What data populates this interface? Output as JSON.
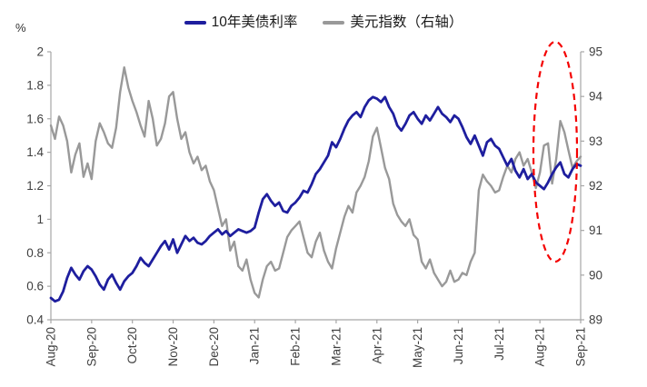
{
  "colors": {
    "treasury_line": "#1e1e9e",
    "dollar_line": "#999999",
    "annotation_red": "#f40000",
    "axis": "#a6a6a6",
    "tick_text": "#3f3f3f"
  },
  "legend": {
    "items": [
      {
        "label": "10年美债利率",
        "color": "#1e1e9e"
      },
      {
        "label": "美元指数（右轴）",
        "color": "#999999"
      }
    ]
  },
  "chart_data": {
    "type": "line",
    "title": "",
    "grid": false,
    "legend_position": "top-center",
    "x_categories": [
      "Aug-20",
      "Sep-20",
      "Oct-20",
      "Nov-20",
      "Dec-20",
      "Jan-21",
      "Feb-21",
      "Mar-21",
      "Apr-21",
      "May-21",
      "Jun-21",
      "Jul-21",
      "Aug-21",
      "Sep-21"
    ],
    "left_axis": {
      "unit": "%",
      "min": 0.4,
      "max": 2.0,
      "ticks": [
        "2",
        "1.8",
        "1.6",
        "1.4",
        "1.2",
        "1",
        "0.8",
        "0.6",
        "0.4"
      ]
    },
    "right_axis": {
      "min": 89,
      "max": 95,
      "ticks": [
        "95",
        "94",
        "93",
        "92",
        "91",
        "90",
        "89"
      ]
    },
    "series": [
      {
        "name": "10年美债利率",
        "axis": "left",
        "color": "#1e1e9e",
        "values": [
          0.53,
          0.51,
          0.52,
          0.57,
          0.65,
          0.71,
          0.67,
          0.64,
          0.69,
          0.72,
          0.7,
          0.66,
          0.61,
          0.58,
          0.64,
          0.67,
          0.62,
          0.58,
          0.63,
          0.66,
          0.68,
          0.72,
          0.77,
          0.74,
          0.72,
          0.76,
          0.8,
          0.84,
          0.87,
          0.82,
          0.88,
          0.8,
          0.85,
          0.9,
          0.87,
          0.89,
          0.86,
          0.85,
          0.87,
          0.9,
          0.92,
          0.94,
          0.91,
          0.93,
          0.9,
          0.92,
          0.94,
          0.93,
          0.92,
          0.93,
          0.95,
          1.04,
          1.12,
          1.15,
          1.11,
          1.08,
          1.1,
          1.05,
          1.04,
          1.08,
          1.1,
          1.13,
          1.17,
          1.16,
          1.21,
          1.27,
          1.3,
          1.34,
          1.38,
          1.46,
          1.43,
          1.48,
          1.54,
          1.59,
          1.62,
          1.64,
          1.61,
          1.67,
          1.71,
          1.73,
          1.72,
          1.7,
          1.73,
          1.67,
          1.63,
          1.56,
          1.53,
          1.57,
          1.62,
          1.64,
          1.6,
          1.57,
          1.62,
          1.59,
          1.63,
          1.67,
          1.63,
          1.61,
          1.58,
          1.62,
          1.6,
          1.55,
          1.49,
          1.45,
          1.5,
          1.44,
          1.38,
          1.46,
          1.48,
          1.44,
          1.42,
          1.37,
          1.32,
          1.36,
          1.29,
          1.25,
          1.3,
          1.24,
          1.27,
          1.22,
          1.2,
          1.18,
          1.22,
          1.27,
          1.31,
          1.34,
          1.27,
          1.25,
          1.3,
          1.33,
          1.32
        ]
      },
      {
        "name": "美元指数（右轴）",
        "axis": "right",
        "color": "#999999",
        "values": [
          93.35,
          93.05,
          93.55,
          93.35,
          93.0,
          92.3,
          92.7,
          92.95,
          92.2,
          92.5,
          92.15,
          93.0,
          93.4,
          93.2,
          92.95,
          92.85,
          93.3,
          94.1,
          94.65,
          94.2,
          93.9,
          93.65,
          93.35,
          93.1,
          93.9,
          93.5,
          92.9,
          93.05,
          93.4,
          94.0,
          94.1,
          93.5,
          93.05,
          93.2,
          92.75,
          92.5,
          92.65,
          92.35,
          92.45,
          92.1,
          91.9,
          91.5,
          91.1,
          91.25,
          90.55,
          90.75,
          90.2,
          90.1,
          90.35,
          89.9,
          89.6,
          89.5,
          89.9,
          90.2,
          90.3,
          90.1,
          90.15,
          90.5,
          90.85,
          91.0,
          91.1,
          91.2,
          90.85,
          90.5,
          90.4,
          90.75,
          90.95,
          90.55,
          90.3,
          90.15,
          90.6,
          90.95,
          91.3,
          91.55,
          91.4,
          91.85,
          92.0,
          92.2,
          92.55,
          93.1,
          93.3,
          92.85,
          92.4,
          92.15,
          91.6,
          91.35,
          91.2,
          91.1,
          91.25,
          90.9,
          90.8,
          90.3,
          90.15,
          90.35,
          90.05,
          89.9,
          89.75,
          89.85,
          90.1,
          89.85,
          89.9,
          90.05,
          90.0,
          90.3,
          90.5,
          91.9,
          92.25,
          92.1,
          92.0,
          91.85,
          91.9,
          92.2,
          92.45,
          92.3,
          92.6,
          92.75,
          92.45,
          92.6,
          92.3,
          91.95,
          92.3,
          92.9,
          92.95,
          92.05,
          92.6,
          93.45,
          93.2,
          92.8,
          92.4,
          92.55,
          92.65
        ]
      }
    ],
    "annotation": {
      "type": "dashed-ellipse",
      "color": "#f40000",
      "cx": 611,
      "cy": 167,
      "rx": 24,
      "ry": 121,
      "note": "highlights Aug-21 period"
    }
  }
}
